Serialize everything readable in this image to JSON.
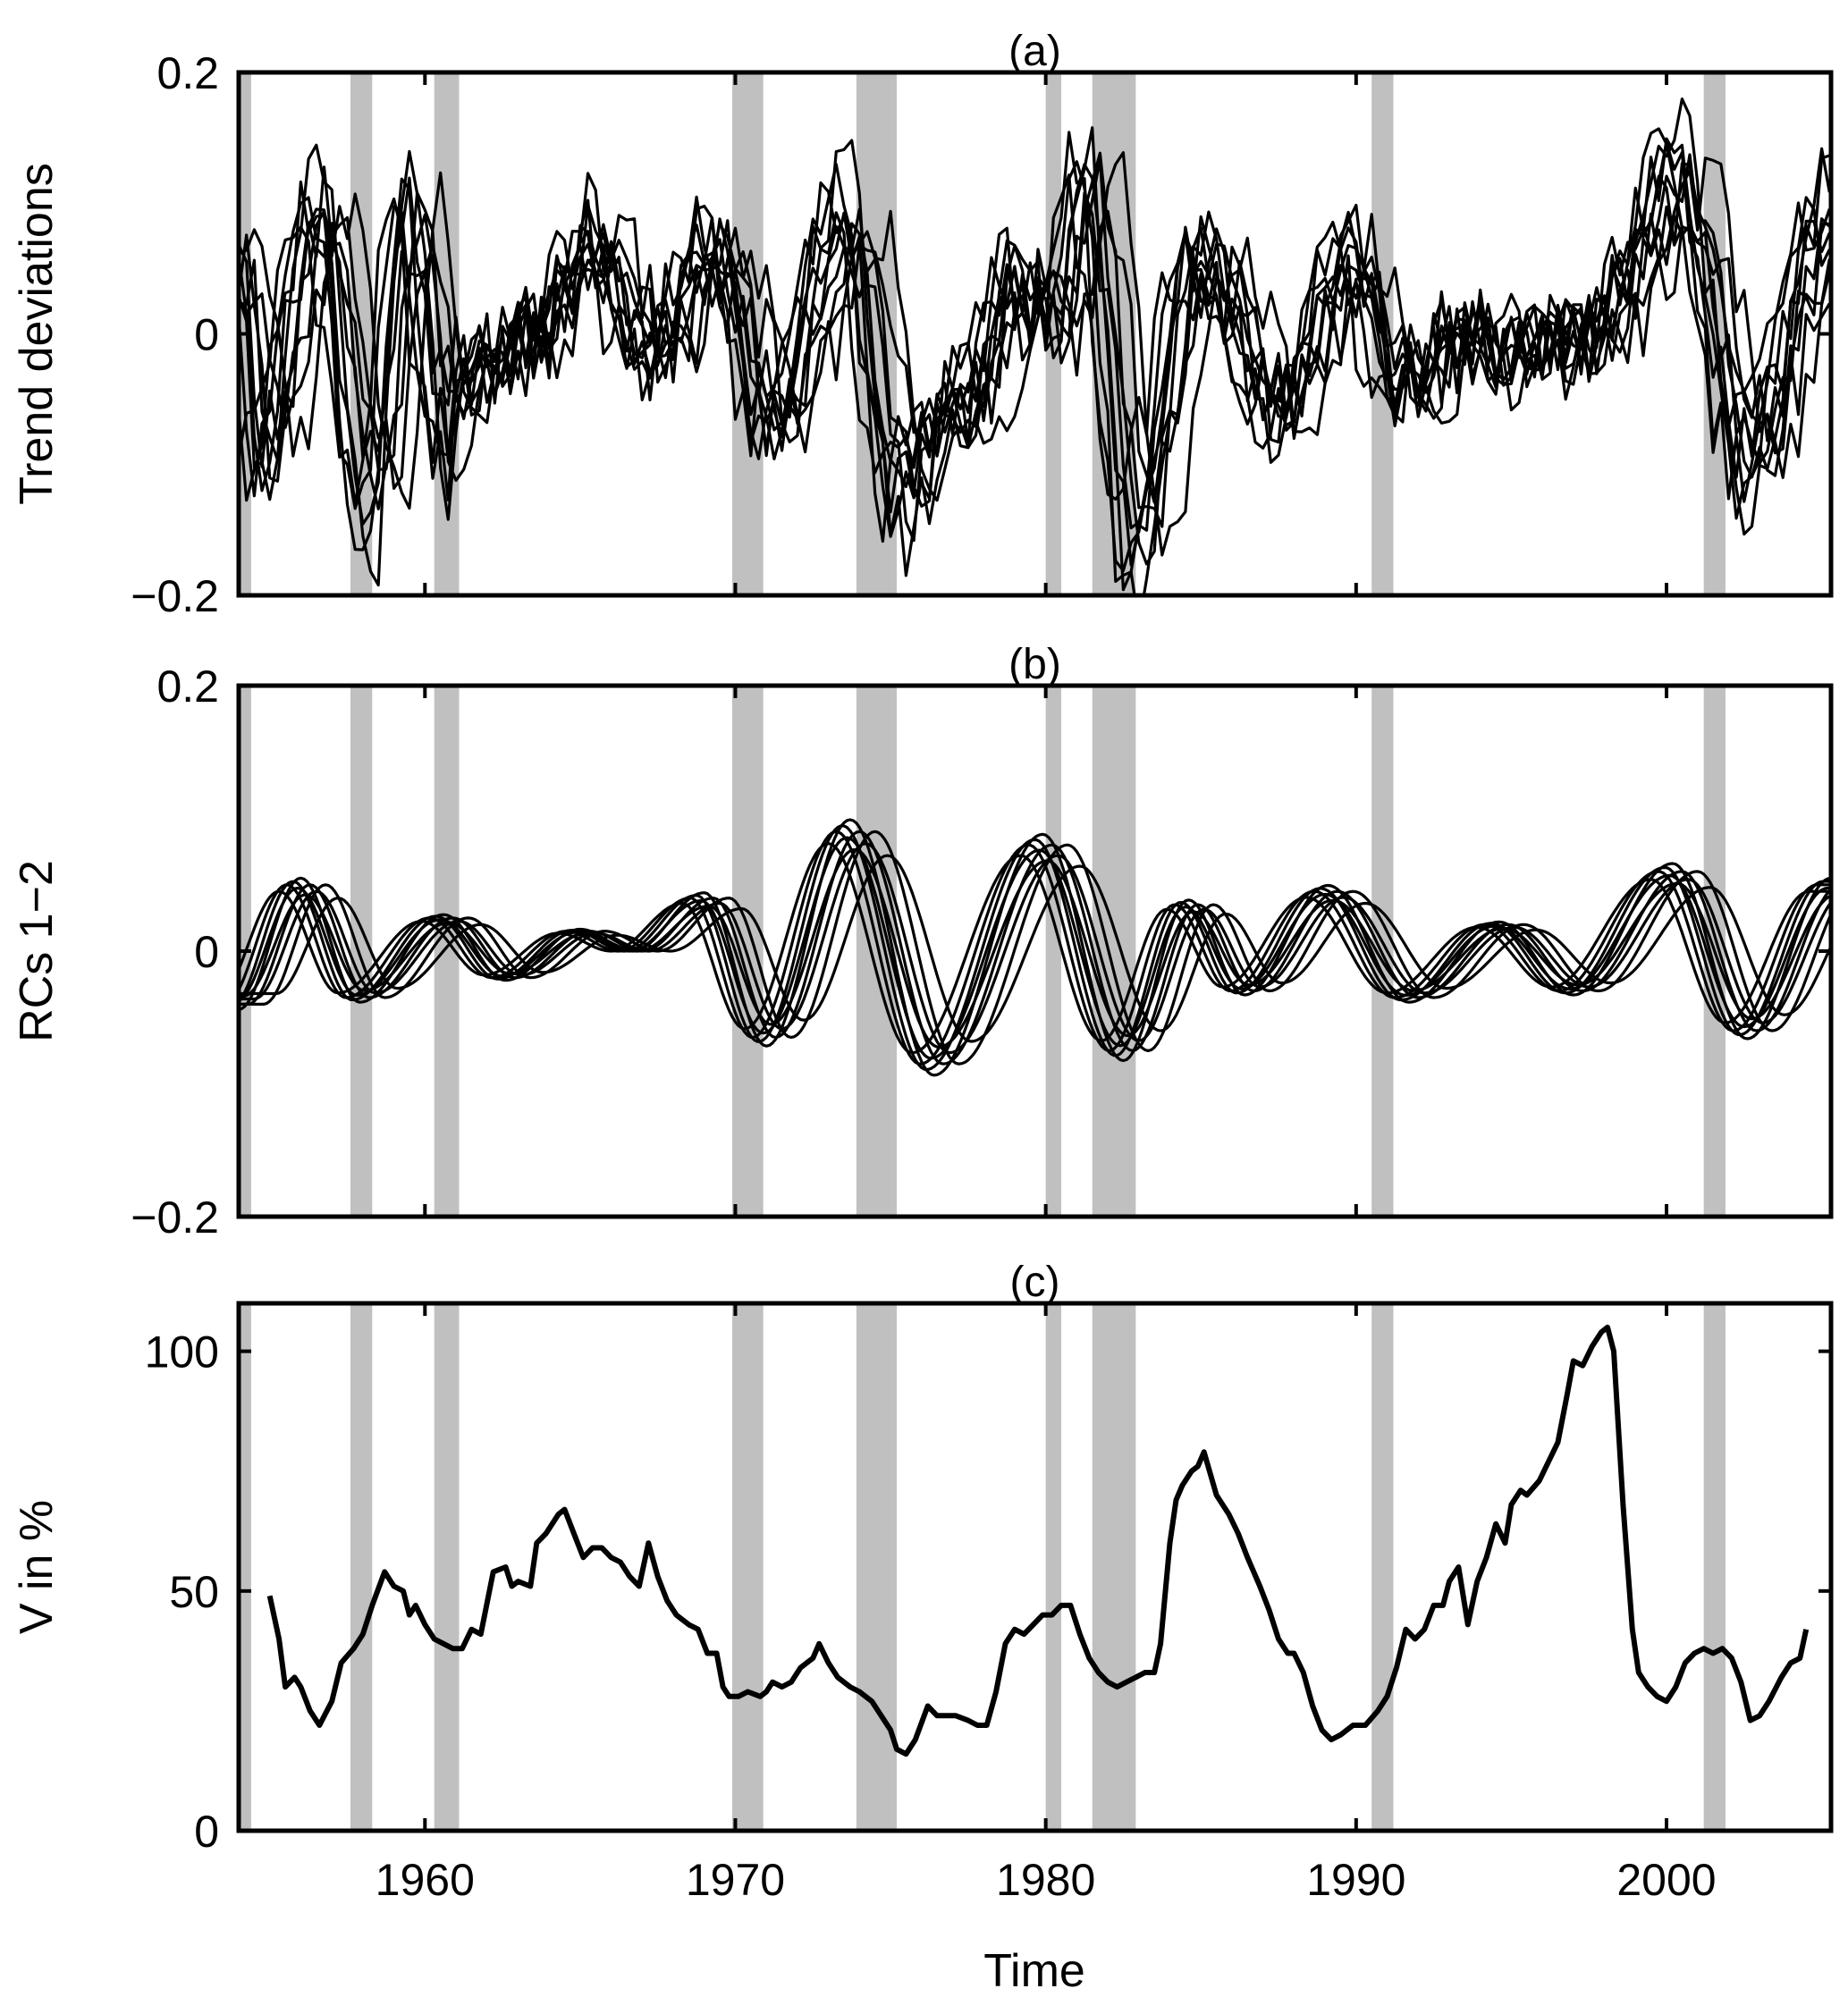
{
  "chart_data": [
    {
      "type": "line",
      "title": "(a)",
      "ylabel": "Trend deviations",
      "xlim": [
        1954.0,
        2005.3
      ],
      "ylim": [
        -0.2,
        0.2
      ],
      "yticks": [
        -0.2,
        0,
        0.2
      ],
      "ytick_labels": [
        "−0.2",
        "0",
        "0.2"
      ],
      "xticks": [
        1960,
        1970,
        1980,
        1990,
        2000
      ],
      "base_extrema": [
        [
          1954.0,
          0.05
        ],
        [
          1954.6,
          -0.1
        ],
        [
          1956.5,
          0.1
        ],
        [
          1958.2,
          -0.15
        ],
        [
          1959.4,
          0.1
        ],
        [
          1960.7,
          -0.1
        ],
        [
          1961.5,
          -0.02
        ],
        [
          1962.5,
          -0.02
        ],
        [
          1963.5,
          0.0
        ],
        [
          1965.2,
          0.08
        ],
        [
          1967.0,
          -0.02
        ],
        [
          1969.3,
          0.07
        ],
        [
          1971.0,
          -0.08
        ],
        [
          1973.5,
          0.1
        ],
        [
          1975.2,
          -0.13
        ],
        [
          1977.5,
          -0.05
        ],
        [
          1979.0,
          0.05
        ],
        [
          1980.2,
          0.0
        ],
        [
          1981.2,
          0.13
        ],
        [
          1982.7,
          -0.17
        ],
        [
          1984.8,
          0.06
        ],
        [
          1987.5,
          -0.06
        ],
        [
          1989.7,
          0.07
        ],
        [
          1991.2,
          -0.05
        ],
        [
          1993.5,
          0.0
        ],
        [
          1995.0,
          -0.02
        ],
        [
          1997.5,
          0.0
        ],
        [
          2000.3,
          0.13
        ],
        [
          2002.5,
          -0.1
        ],
        [
          2005.3,
          0.1
        ]
      ],
      "series_lags": [
        -0.5,
        -0.3,
        -0.15,
        0,
        0.1,
        0.2,
        0.35,
        0.5,
        0.8,
        1.1
      ],
      "series_scales": [
        0.8,
        1.0,
        1.1,
        0.9,
        1.2,
        0.7,
        1.0,
        0.85,
        0.6,
        0.9
      ],
      "noise_amplitude": 0.035,
      "step": 0.25
    },
    {
      "type": "line",
      "title": "(b)",
      "ylabel": "RCs 1−2",
      "xlim": [
        1954.0,
        2005.3
      ],
      "ylim": [
        -0.2,
        0.2
      ],
      "yticks": [
        -0.2,
        0,
        0.2
      ],
      "ytick_labels": [
        "−0.2",
        "0",
        "0.2"
      ],
      "xticks": [
        1960,
        1970,
        1980,
        1990,
        2000
      ],
      "base_extrema": [
        [
          1954.0,
          -0.04
        ],
        [
          1956.0,
          0.05
        ],
        [
          1957.9,
          -0.035
        ],
        [
          1960.6,
          0.025
        ],
        [
          1962.6,
          -0.02
        ],
        [
          1965.0,
          0.015
        ],
        [
          1966.7,
          0.0
        ],
        [
          1969.0,
          0.04
        ],
        [
          1971.0,
          -0.065
        ],
        [
          1973.7,
          0.09
        ],
        [
          1976.4,
          -0.085
        ],
        [
          1979.9,
          0.08
        ],
        [
          1982.5,
          -0.075
        ],
        [
          1984.6,
          0.035
        ],
        [
          1986.4,
          -0.03
        ],
        [
          1989.1,
          0.045
        ],
        [
          1991.7,
          -0.035
        ],
        [
          1994.6,
          0.02
        ],
        [
          1997.0,
          -0.03
        ],
        [
          2000.2,
          0.06
        ],
        [
          2002.6,
          -0.06
        ],
        [
          2005.3,
          0.05
        ]
      ],
      "series_lags": [
        -0.7,
        -0.45,
        -0.25,
        -0.1,
        0,
        0.15,
        0.3,
        0.5,
        0.8,
        1.2
      ],
      "series_scales": [
        0.9,
        1.0,
        1.05,
        0.95,
        1.1,
        0.85,
        1.0,
        0.9,
        1.0,
        0.8
      ],
      "noise_amplitude": 0,
      "step": 0.1
    },
    {
      "type": "line",
      "title": "(c)",
      "ylabel": "V in %",
      "xlabel": "Time",
      "xlim": [
        1954.0,
        2005.3
      ],
      "ylim": [
        0,
        110
      ],
      "yticks": [
        0,
        50,
        100
      ],
      "ytick_labels": [
        "0",
        "50",
        "100"
      ],
      "xticks": [
        1960,
        1970,
        1980,
        1990,
        2000
      ],
      "xtick_labels": [
        "1960",
        "1970",
        "1980",
        "1990",
        "2000"
      ],
      "x": [
        1955.0,
        1955.3,
        1955.5,
        1955.8,
        1956.0,
        1956.3,
        1956.6,
        1957.0,
        1957.3,
        1957.7,
        1958.0,
        1958.3,
        1958.7,
        1959.0,
        1959.3,
        1959.5,
        1959.7,
        1960.0,
        1960.3,
        1960.6,
        1960.9,
        1961.2,
        1961.5,
        1961.8,
        1962.2,
        1962.6,
        1962.8,
        1963.0,
        1963.4,
        1963.6,
        1963.9,
        1964.3,
        1964.5,
        1964.8,
        1965.1,
        1965.4,
        1965.7,
        1966.0,
        1966.3,
        1966.6,
        1966.9,
        1967.2,
        1967.5,
        1967.8,
        1968.1,
        1968.5,
        1968.8,
        1969.1,
        1969.4,
        1969.6,
        1969.8,
        1970.1,
        1970.4,
        1970.8,
        1971.0,
        1971.2,
        1971.5,
        1971.8,
        1972.1,
        1972.5,
        1972.7,
        1973.0,
        1973.3,
        1973.7,
        1974.0,
        1974.4,
        1974.7,
        1975.0,
        1975.2,
        1975.5,
        1975.8,
        1976.2,
        1976.5,
        1976.8,
        1977.1,
        1977.5,
        1977.8,
        1978.1,
        1978.4,
        1978.7,
        1979.0,
        1979.3,
        1979.6,
        1979.9,
        1980.2,
        1980.5,
        1980.8,
        1981.1,
        1981.4,
        1981.7,
        1982.0,
        1982.3,
        1982.6,
        1982.9,
        1983.2,
        1983.5,
        1983.7,
        1984.0,
        1984.2,
        1984.4,
        1984.7,
        1984.9,
        1985.1,
        1985.5,
        1985.9,
        1986.2,
        1986.5,
        1986.9,
        1987.2,
        1987.5,
        1987.8,
        1988.0,
        1988.3,
        1988.6,
        1988.9,
        1989.2,
        1989.5,
        1989.9,
        1990.3,
        1990.7,
        1991.0,
        1991.3,
        1991.6,
        1991.9,
        1992.2,
        1992.5,
        1992.8,
        1993.0,
        1993.3,
        1993.6,
        1993.9,
        1994.2,
        1994.5,
        1994.8,
        1995.0,
        1995.3,
        1995.5,
        1995.9,
        1996.2,
        1996.5,
        1996.8,
        1997.0,
        1997.3,
        1997.6,
        1997.9,
        1998.1,
        1998.3,
        1998.6,
        1998.9,
        1999.1,
        1999.4,
        1999.7,
        2000.0,
        2000.3,
        2000.6,
        2000.9,
        2001.2,
        2001.5,
        2001.8,
        2002.1,
        2002.4,
        2002.7,
        2003.0,
        2003.3,
        2003.7,
        2004.0,
        2004.3,
        2004.5
      ],
      "y": [
        49,
        40,
        30,
        32,
        30,
        25,
        22,
        27,
        35,
        38,
        41,
        47,
        54,
        51,
        50,
        45,
        47,
        43,
        40,
        39,
        38,
        38,
        42,
        41,
        54,
        55,
        51,
        52,
        51,
        60,
        62,
        66,
        67,
        62,
        57,
        59,
        59,
        57,
        56,
        53,
        51,
        60,
        53,
        48,
        45,
        43,
        42,
        37,
        37,
        30,
        28,
        28,
        29,
        28,
        29,
        31,
        30,
        31,
        34,
        36,
        39,
        35,
        32,
        30,
        29,
        27,
        24,
        21,
        17,
        16,
        19,
        26,
        24,
        24,
        24,
        23,
        22,
        22,
        29,
        39,
        42,
        41,
        43,
        45,
        45,
        47,
        47,
        41,
        36,
        33,
        31,
        30,
        31,
        32,
        33,
        33,
        39,
        60,
        69,
        72,
        75,
        76,
        79,
        70,
        66,
        62,
        57,
        51,
        46,
        40,
        37,
        37,
        33,
        26,
        21,
        19,
        20,
        22,
        22,
        25,
        28,
        34,
        42,
        40,
        42,
        47,
        47,
        52,
        55,
        43,
        52,
        57,
        64,
        60,
        68,
        71,
        70,
        73,
        77,
        81,
        91,
        98,
        97,
        101,
        104,
        105,
        100,
        68,
        42,
        33,
        30,
        28,
        27,
        30,
        35,
        37,
        38,
        37,
        38,
        36,
        31,
        23,
        24,
        27,
        32,
        35,
        36,
        42
      ]
    }
  ],
  "recessions": [
    [
      1953.6,
      1954.4
    ],
    [
      1957.6,
      1958.3
    ],
    [
      1960.3,
      1961.1
    ],
    [
      1969.9,
      1970.9
    ],
    [
      1973.9,
      1975.2
    ],
    [
      1980.0,
      1980.5
    ],
    [
      1981.5,
      1982.9
    ],
    [
      1990.5,
      1991.2
    ],
    [
      2001.2,
      2001.9
    ]
  ],
  "colors": {
    "line": "#000000",
    "recession": "#c0c0c0",
    "axis": "#000000"
  }
}
